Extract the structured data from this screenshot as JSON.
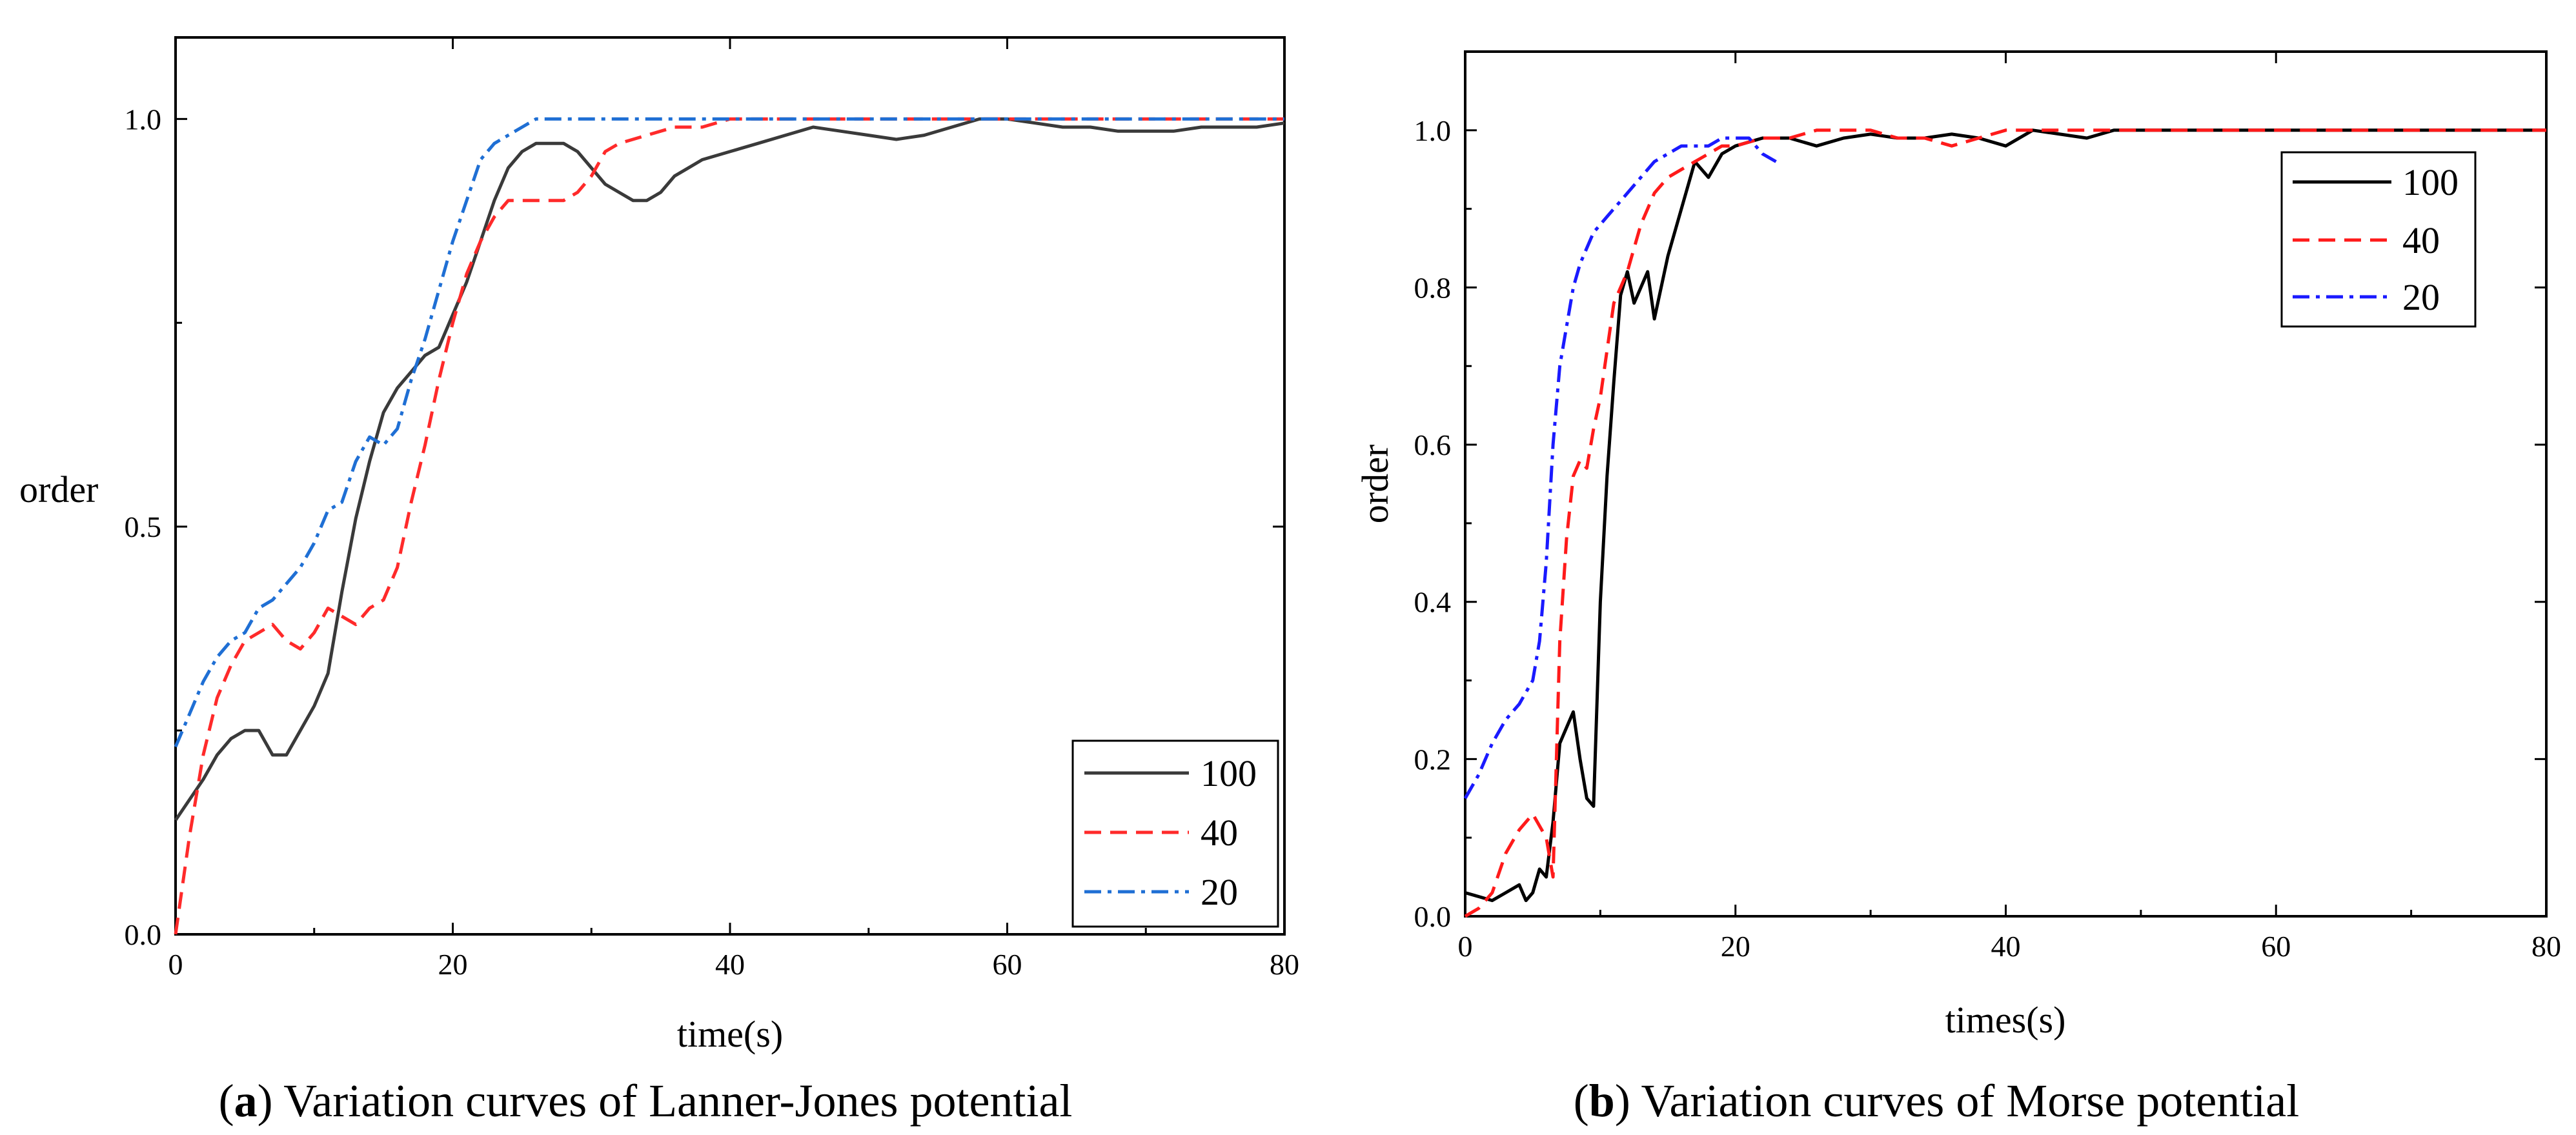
{
  "chart_data": [
    {
      "id": "a",
      "type": "line",
      "caption_letter": "a",
      "caption_text": "Variation curves of Lanner-Jones potential",
      "xlabel": "time(s)",
      "ylabel": "order",
      "xlim": [
        0,
        80
      ],
      "ylim": [
        0,
        1.1
      ],
      "xticks": [
        0,
        20,
        40,
        60,
        80
      ],
      "yticks": [
        0.0,
        0.5,
        1.0
      ],
      "ytick_labels": [
        "0.0",
        "0.5",
        "1.0"
      ],
      "grid": false,
      "legend_position": "bottom-right",
      "series": [
        {
          "name": "100",
          "color": "#3a3a3a",
          "dash": "solid",
          "x": [
            0,
            2,
            3,
            4,
            5,
            6,
            7,
            8,
            9,
            10,
            11,
            12,
            13,
            14,
            15,
            16,
            17,
            18,
            19,
            20,
            21,
            22,
            23,
            24,
            25,
            26,
            27,
            28,
            29,
            30,
            31,
            32,
            33,
            34,
            35,
            36,
            37,
            38,
            40,
            42,
            44,
            46,
            48,
            50,
            52,
            54,
            56,
            58,
            60,
            62,
            64,
            66,
            68,
            70,
            72,
            74,
            76,
            78,
            80
          ],
          "values": [
            0.14,
            0.19,
            0.22,
            0.24,
            0.25,
            0.25,
            0.22,
            0.22,
            0.25,
            0.28,
            0.32,
            0.42,
            0.51,
            0.58,
            0.64,
            0.67,
            0.69,
            0.71,
            0.72,
            0.76,
            0.8,
            0.85,
            0.9,
            0.94,
            0.96,
            0.97,
            0.97,
            0.97,
            0.96,
            0.94,
            0.92,
            0.91,
            0.9,
            0.9,
            0.91,
            0.93,
            0.94,
            0.95,
            0.96,
            0.97,
            0.98,
            0.99,
            0.985,
            0.98,
            0.975,
            0.98,
            0.99,
            1.0,
            1.0,
            0.995,
            0.99,
            0.99,
            0.985,
            0.985,
            0.985,
            0.99,
            0.99,
            0.99,
            0.995
          ]
        },
        {
          "name": "40",
          "color": "#ff2a2a",
          "dash": "dashed",
          "x": [
            0,
            1,
            2,
            3,
            4,
            5,
            6,
            7,
            8,
            9,
            10,
            11,
            12,
            13,
            14,
            15,
            16,
            17,
            18,
            19,
            20,
            21,
            22,
            23,
            24,
            25,
            26,
            27,
            28,
            29,
            30,
            31,
            32,
            34,
            36,
            38,
            40,
            45,
            50,
            55,
            60,
            65,
            70,
            75,
            80
          ],
          "values": [
            0.0,
            0.12,
            0.22,
            0.29,
            0.33,
            0.36,
            0.37,
            0.38,
            0.36,
            0.35,
            0.37,
            0.4,
            0.39,
            0.38,
            0.4,
            0.41,
            0.45,
            0.53,
            0.6,
            0.68,
            0.75,
            0.81,
            0.85,
            0.88,
            0.9,
            0.9,
            0.9,
            0.9,
            0.9,
            0.91,
            0.93,
            0.96,
            0.97,
            0.98,
            0.99,
            0.99,
            1.0,
            1.0,
            1.0,
            1.0,
            1.0,
            1.0,
            1.0,
            1.0,
            1.0
          ]
        },
        {
          "name": "20",
          "color": "#1f6fd4",
          "dash": "dashdot",
          "x": [
            0,
            1,
            2,
            3,
            4,
            5,
            6,
            7,
            8,
            9,
            10,
            11,
            12,
            13,
            14,
            15,
            16,
            17,
            18,
            19,
            20,
            21,
            22,
            23,
            24,
            25,
            26,
            27,
            28,
            30,
            35,
            40,
            50,
            60,
            70,
            80
          ],
          "values": [
            0.23,
            0.27,
            0.31,
            0.34,
            0.36,
            0.37,
            0.4,
            0.41,
            0.43,
            0.45,
            0.48,
            0.52,
            0.53,
            0.58,
            0.61,
            0.6,
            0.62,
            0.68,
            0.73,
            0.79,
            0.85,
            0.9,
            0.95,
            0.97,
            0.98,
            0.99,
            1.0,
            1.0,
            1.0,
            1.0,
            1.0,
            1.0,
            1.0,
            1.0,
            1.0,
            1.0
          ]
        }
      ]
    },
    {
      "id": "b",
      "type": "line",
      "caption_letter": "b",
      "caption_text": "Variation curves of Morse potential",
      "xlabel": "times(s)",
      "ylabel": "order",
      "xlim": [
        0,
        80
      ],
      "ylim": [
        0,
        1.1
      ],
      "xticks": [
        0,
        20,
        40,
        60,
        80
      ],
      "yticks": [
        0.0,
        0.2,
        0.4,
        0.6,
        0.8,
        1.0
      ],
      "ytick_labels": [
        "0.0",
        "0.2",
        "0.4",
        "0.6",
        "0.8",
        "1.0"
      ],
      "grid": false,
      "legend_position": "top-right",
      "series": [
        {
          "name": "100",
          "color": "#000000",
          "dash": "solid",
          "x": [
            0,
            1,
            2,
            3,
            4,
            4.5,
            5,
            5.5,
            6,
            6.5,
            7,
            7.5,
            8,
            8.5,
            9,
            9.5,
            10,
            10.5,
            11,
            11.5,
            12,
            12.5,
            13,
            13.5,
            14,
            14.5,
            15,
            16,
            17,
            18,
            19,
            20,
            22,
            24,
            26,
            28,
            30,
            32,
            34,
            36,
            38,
            40,
            42,
            44,
            46,
            48,
            50,
            55,
            60,
            65,
            70,
            75,
            80
          ],
          "values": [
            0.03,
            0.025,
            0.02,
            0.03,
            0.04,
            0.02,
            0.03,
            0.06,
            0.05,
            0.12,
            0.22,
            0.24,
            0.26,
            0.2,
            0.15,
            0.14,
            0.4,
            0.56,
            0.68,
            0.79,
            0.82,
            0.78,
            0.8,
            0.82,
            0.76,
            0.8,
            0.84,
            0.9,
            0.96,
            0.94,
            0.97,
            0.98,
            0.99,
            0.99,
            0.98,
            0.99,
            0.995,
            0.99,
            0.99,
            0.995,
            0.99,
            0.98,
            1.0,
            0.995,
            0.99,
            1.0,
            1.0,
            1.0,
            1.0,
            1.0,
            1.0,
            1.0,
            1.0
          ]
        },
        {
          "name": "40",
          "color": "#ff1a1a",
          "dash": "dashed",
          "x": [
            0,
            1,
            2,
            3,
            4,
            5,
            6,
            6.5,
            7,
            7.5,
            8,
            8.5,
            9,
            9.5,
            10,
            10.5,
            11,
            11.5,
            12,
            12.5,
            13,
            13.5,
            14,
            15,
            16,
            17,
            18,
            19,
            20,
            22,
            24,
            26,
            28,
            30,
            32,
            34,
            36,
            38,
            40,
            45,
            50,
            60,
            70,
            80
          ],
          "values": [
            0.0,
            0.01,
            0.03,
            0.08,
            0.11,
            0.13,
            0.1,
            0.05,
            0.35,
            0.48,
            0.56,
            0.58,
            0.57,
            0.62,
            0.66,
            0.72,
            0.78,
            0.8,
            0.82,
            0.85,
            0.88,
            0.9,
            0.92,
            0.94,
            0.95,
            0.96,
            0.97,
            0.98,
            0.98,
            0.99,
            0.99,
            1.0,
            1.0,
            1.0,
            0.99,
            0.99,
            0.98,
            0.99,
            1.0,
            1.0,
            1.0,
            1.0,
            1.0,
            1.0
          ]
        },
        {
          "name": "20",
          "color": "#1a1aff",
          "dash": "dashdot",
          "x": [
            0,
            1,
            2,
            3,
            4,
            5,
            5.5,
            6,
            6.5,
            7,
            7.5,
            8,
            8.5,
            9,
            9.5,
            10,
            10.5,
            11,
            11.5,
            12,
            13,
            14,
            15,
            16,
            17,
            18,
            19,
            20,
            21,
            22,
            23
          ],
          "values": [
            0.15,
            0.18,
            0.22,
            0.25,
            0.27,
            0.3,
            0.35,
            0.45,
            0.6,
            0.7,
            0.75,
            0.8,
            0.83,
            0.85,
            0.87,
            0.88,
            0.89,
            0.9,
            0.91,
            0.92,
            0.94,
            0.96,
            0.97,
            0.98,
            0.98,
            0.98,
            0.99,
            0.99,
            0.99,
            0.97,
            0.96
          ]
        }
      ]
    }
  ]
}
